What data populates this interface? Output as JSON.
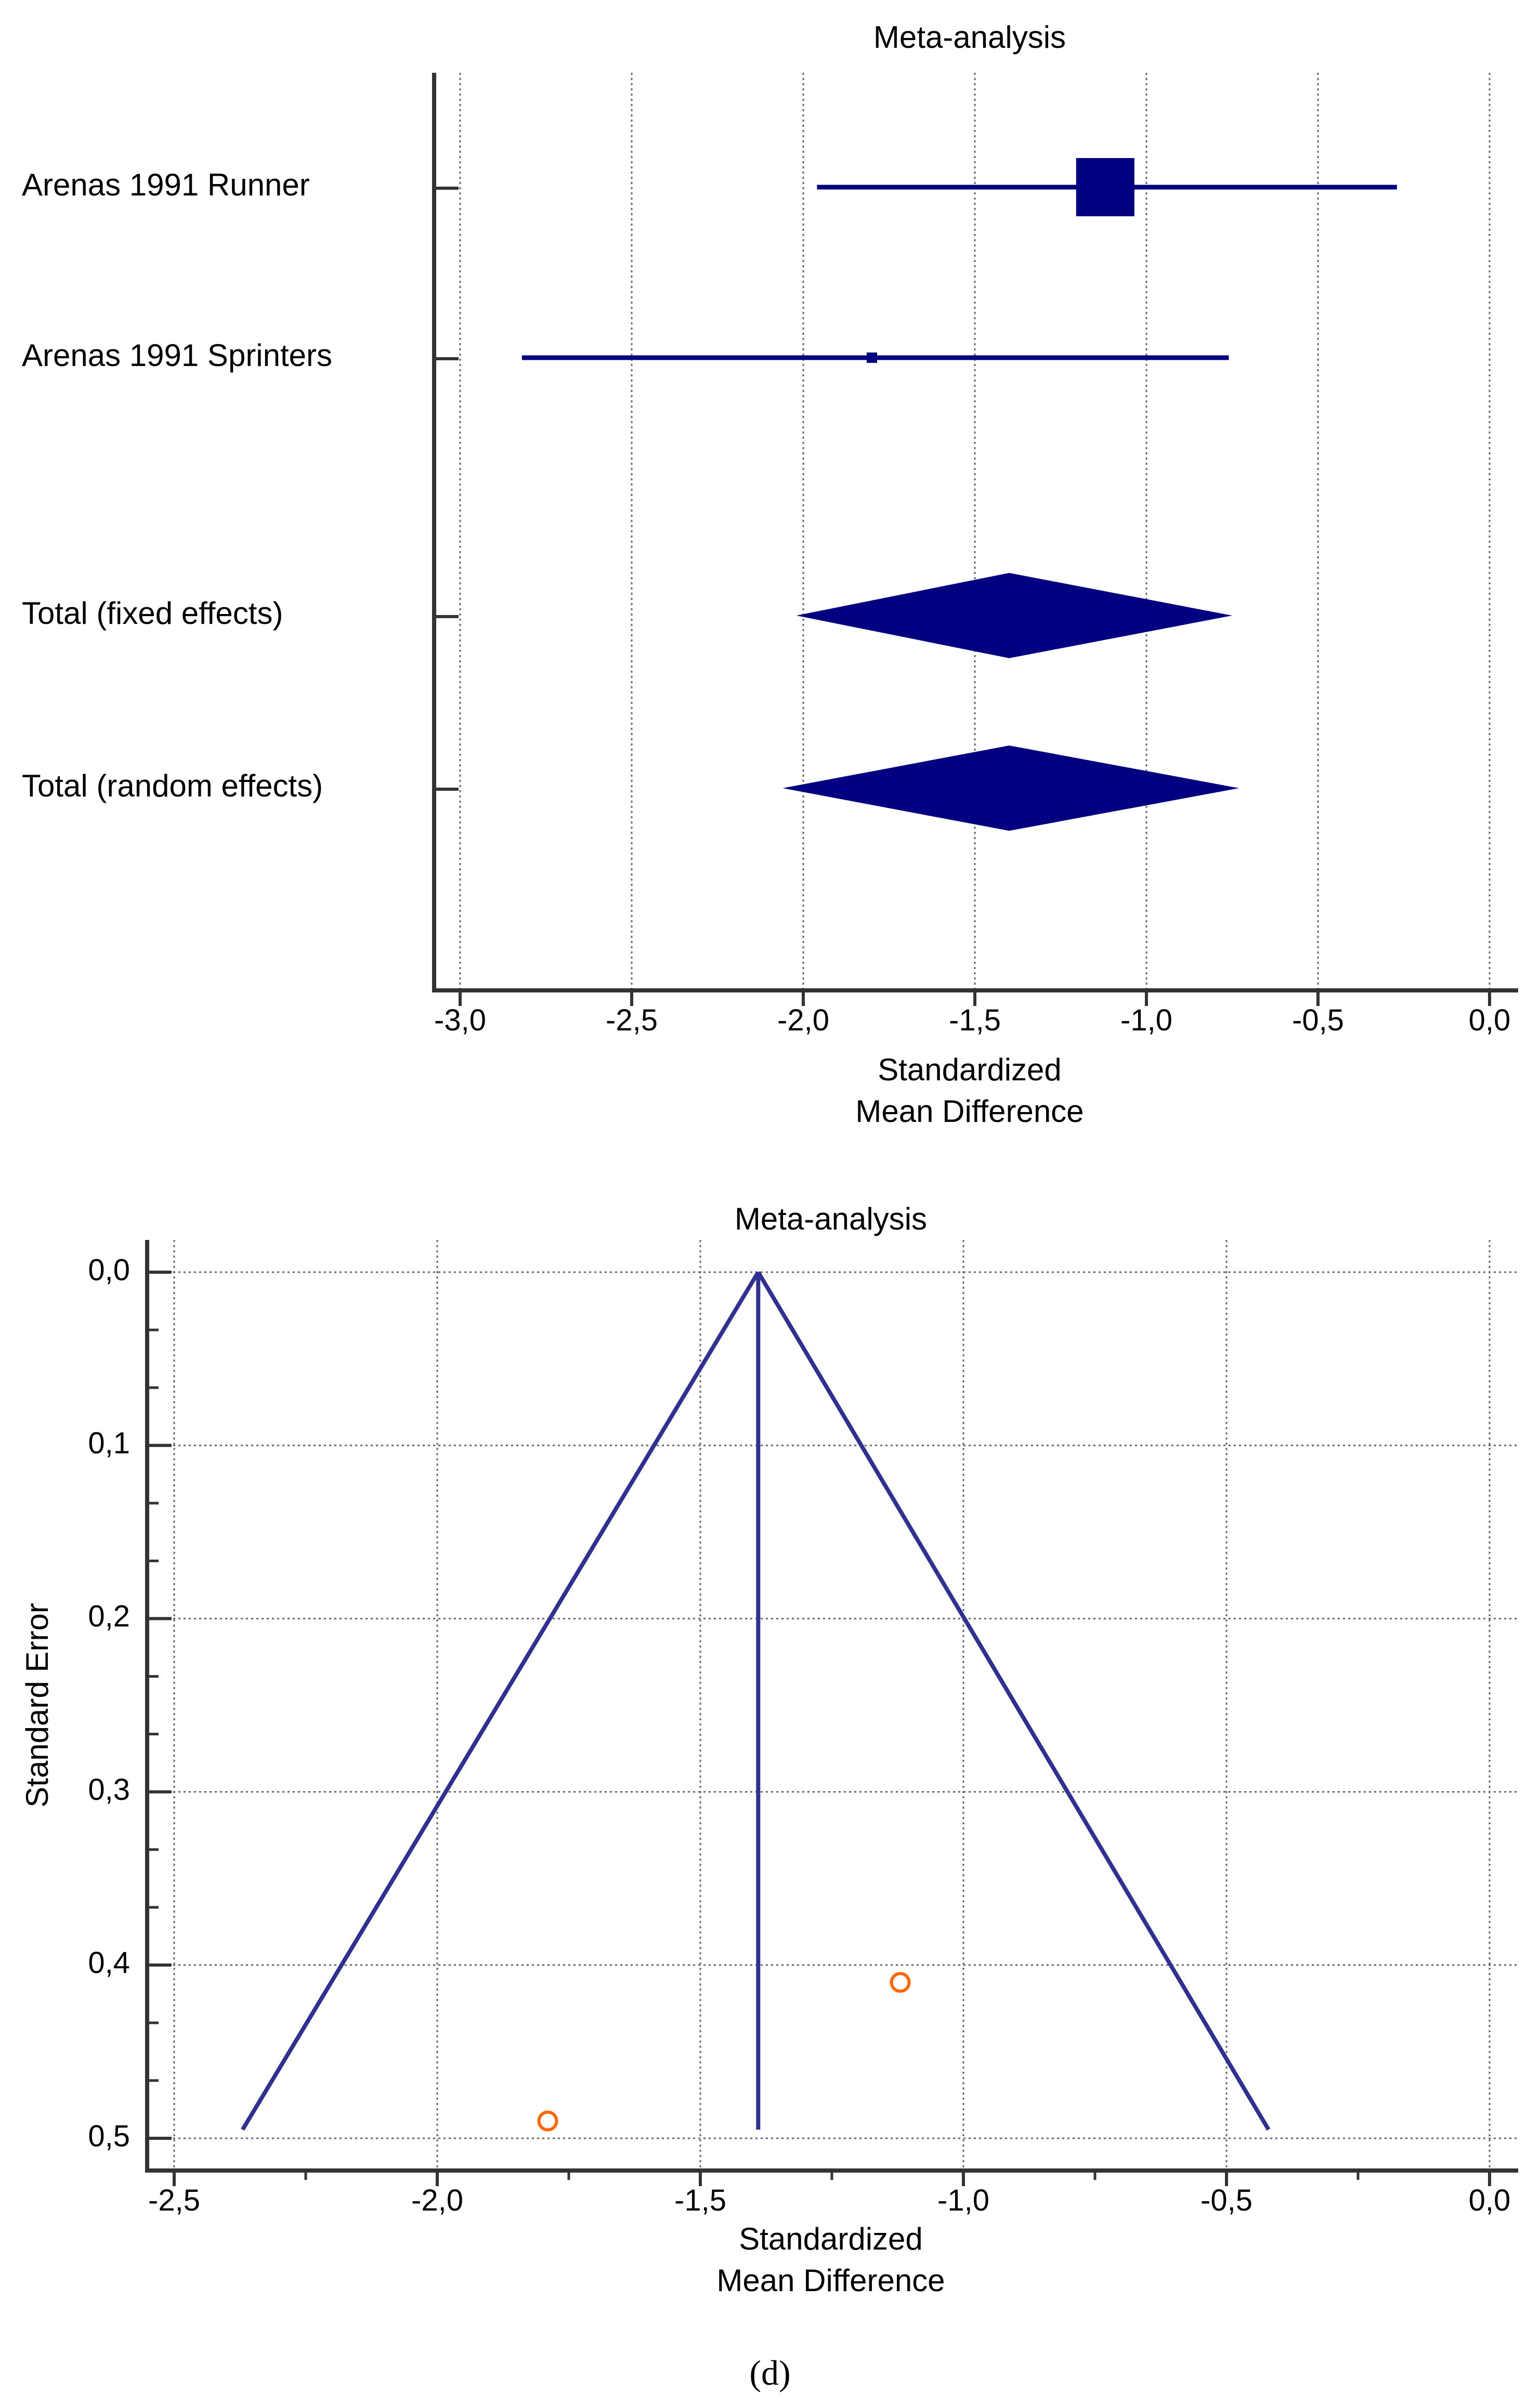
{
  "chart_data": [
    {
      "type": "forest",
      "title": "Meta-analysis",
      "xlabel_lines": [
        "Standardized",
        "Mean Difference"
      ],
      "xlim": [
        -3.0,
        0.0
      ],
      "xticks": [
        -3.0,
        -2.5,
        -2.0,
        -1.5,
        -1.0,
        -0.5,
        0.0
      ],
      "xtick_labels": [
        "-3,0",
        "-2,5",
        "-2,0",
        "-1,5",
        "-1,0",
        "-0,5",
        "0,0"
      ],
      "grid": "vertical dotted",
      "colors": {
        "mark": "#000080"
      },
      "studies": [
        {
          "label": "Arenas 1991 Runner",
          "estimate": -1.12,
          "ci_low": -1.96,
          "ci_high": -0.27,
          "weight_marker": "large"
        },
        {
          "label": "Arenas 1991 Sprinters",
          "estimate": -1.8,
          "ci_low": -2.82,
          "ci_high": -0.76,
          "weight_marker": "small"
        }
      ],
      "pooled": [
        {
          "label": "Total (fixed effects)",
          "estimate": -1.4,
          "ci_low": -2.02,
          "ci_high": -0.75
        },
        {
          "label": "Total (random effects)",
          "estimate": -1.4,
          "ci_low": -2.06,
          "ci_high": -0.73
        }
      ]
    },
    {
      "type": "funnel",
      "title": "Meta-analysis",
      "xlabel_lines": [
        "Standardized",
        "Mean Difference"
      ],
      "ylabel": "Standard Error",
      "xlim": [
        -2.5,
        0.0
      ],
      "ylim": [
        0.0,
        0.5
      ],
      "y_inverted": true,
      "xticks": [
        -2.5,
        -2.0,
        -1.5,
        -1.0,
        -0.5,
        0.0
      ],
      "xtick_labels": [
        "-2,5",
        "-2,0",
        "-1,5",
        "-1,0",
        "-0,5",
        "0,0"
      ],
      "yticks": [
        0.0,
        0.1,
        0.2,
        0.3,
        0.4,
        0.5
      ],
      "ytick_labels": [
        "0,0",
        "0,1",
        "0,2",
        "0,3",
        "0,4",
        "0,5"
      ],
      "grid": "dotted both",
      "pooled_estimate": -1.39,
      "funnel_apex": {
        "x": -1.39,
        "y": 0.0
      },
      "funnel_base": {
        "y": 0.495,
        "x_low": -2.37,
        "x_high": -0.42
      },
      "colors": {
        "funnel": "#2e3192",
        "points": "#ff6600"
      },
      "points": [
        {
          "x": -1.12,
          "y": 0.41
        },
        {
          "x": -1.79,
          "y": 0.49
        }
      ]
    }
  ],
  "caption": "(d)"
}
